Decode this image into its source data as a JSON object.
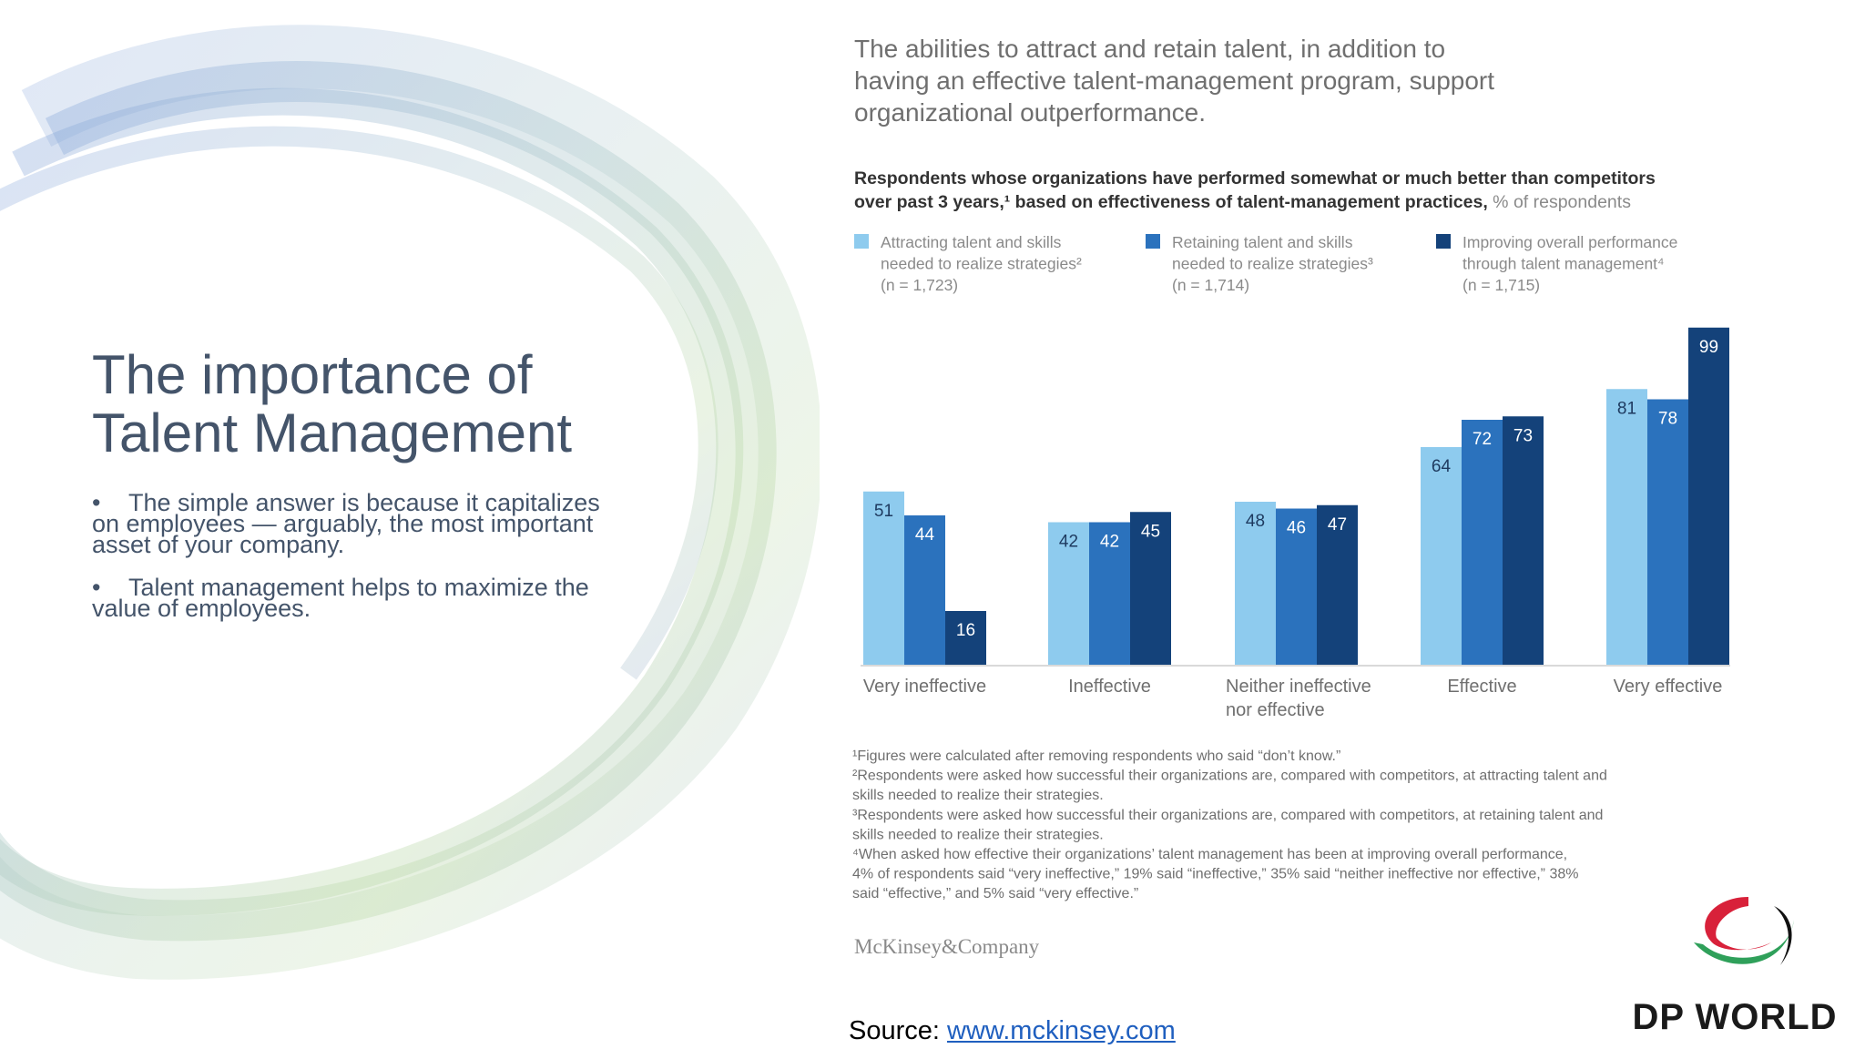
{
  "slide": {
    "title_line1": "The importance of",
    "title_line2": "Talent Management",
    "bullets": [
      "The simple answer is because it capitalizes on employees — arguably, the most important asset of your company.",
      "Talent management helps to maximize the value of employees."
    ],
    "bullet_char": "•"
  },
  "source": {
    "label": "Source: ",
    "link_text": "www.mckinsey.com"
  },
  "logo": {
    "text": "DP WORLD"
  },
  "colors": {
    "light": "#8ecbee",
    "mid": "#2b72bd",
    "dark": "#14427a",
    "heading": "#6f6f6f"
  },
  "chart_data": {
    "type": "bar",
    "headline": [
      "The abilities to attract and retain talent, in addition to",
      "having an effective talent-management program, support",
      "organizational outperformance."
    ],
    "subtitle_line1": "Respondents whose organizations have performed somewhat or much better than competitors",
    "subtitle_line2_bold": "over past 3 years,¹ based on effectiveness of talent-management practices,",
    "subtitle_line2_light": " % of respondents",
    "categories": [
      [
        "Very ineffective"
      ],
      [
        "Ineffective"
      ],
      [
        "Neither ineffective",
        "nor effective"
      ],
      [
        "Effective"
      ],
      [
        "Very effective"
      ]
    ],
    "series": [
      {
        "name": "Attracting talent and skills needed to realize strategies²",
        "legend_lines": [
          "Attracting talent and skills",
          "needed to realize strategies²",
          "(n = 1,723)"
        ],
        "color": "#8ecbee",
        "label_color": "#1e3a5f",
        "values": [
          51,
          42,
          48,
          64,
          81
        ]
      },
      {
        "name": "Retaining talent and skills needed to realize strategies³",
        "legend_lines": [
          "Retaining talent and skills",
          "needed to realize strategies³",
          "(n = 1,714)"
        ],
        "color": "#2b72bd",
        "label_color": "#ffffff",
        "values": [
          44,
          42,
          46,
          72,
          78
        ]
      },
      {
        "name": "Improving overall performance through talent management⁴",
        "legend_lines": [
          "Improving overall performance",
          "through talent management⁴",
          "(n = 1,715)"
        ],
        "color": "#14427a",
        "label_color": "#ffffff",
        "values": [
          16,
          45,
          47,
          73,
          99
        ]
      }
    ],
    "ylim": [
      0,
      100
    ],
    "footnotes": [
      "¹Figures were calculated after removing respondents who said “don’t know.”",
      "²Respondents were asked how successful their organizations are, compared with competitors, at attracting talent and",
      " skills needed to realize their strategies.",
      "³Respondents were asked how successful their organizations are, compared with competitors, at retaining talent and",
      " skills needed to realize their strategies.",
      "⁴When asked how effective their organizations’ talent management has been at improving overall performance,",
      " 4% of respondents said “very ineffective,” 19% said “ineffective,” 35% said “neither ineffective nor effective,” 38%",
      " said “effective,” and 5% said “very effective.”"
    ],
    "brand": "McKinsey&Company"
  }
}
